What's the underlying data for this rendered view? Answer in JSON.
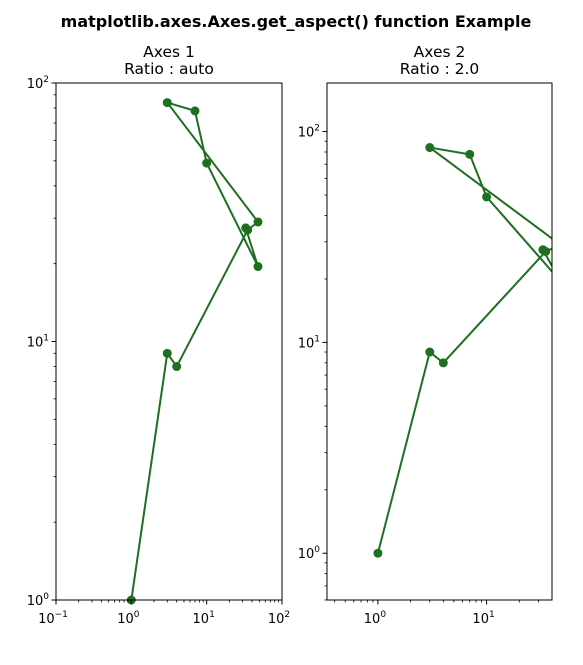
{
  "figure": {
    "suptitle": "matplotlib.axes.Axes.get_aspect() function Example"
  },
  "series_color": "#1f6f22",
  "chart_data": [
    {
      "type": "line",
      "title": "Axes 1",
      "subtitle": "Ratio : auto",
      "xscale": "log",
      "yscale": "log",
      "xlim": [
        0.1,
        100
      ],
      "ylim": [
        1,
        100
      ],
      "x_ticks": [
        {
          "value": 0.1,
          "base": "10",
          "exp": "−1"
        },
        {
          "value": 1,
          "base": "10",
          "exp": "0"
        },
        {
          "value": 10,
          "base": "10",
          "exp": "1"
        },
        {
          "value": 100,
          "base": "10",
          "exp": "2"
        }
      ],
      "y_ticks": [
        {
          "value": 1,
          "base": "10",
          "exp": "0"
        },
        {
          "value": 10,
          "base": "10",
          "exp": "1"
        },
        {
          "value": 100,
          "base": "10",
          "exp": "2"
        }
      ],
      "grid": false,
      "series": [
        {
          "x": [
            1,
            3,
            4,
            35,
            48,
            3,
            7,
            10,
            48,
            33
          ],
          "y": [
            1,
            9,
            8,
            27,
            29,
            84,
            78,
            49,
            19.5,
            27.5
          ]
        }
      ]
    },
    {
      "type": "line",
      "title": "Axes 2",
      "subtitle": "Ratio : 2.0",
      "xscale": "log",
      "yscale": "log",
      "xlim": [
        0.34,
        40
      ],
      "ylim": [
        0.6,
        170
      ],
      "x_ticks": [
        {
          "value": 1,
          "base": "10",
          "exp": "0"
        },
        {
          "value": 10,
          "base": "10",
          "exp": "1"
        }
      ],
      "y_ticks": [
        {
          "value": 1,
          "base": "10",
          "exp": "0"
        },
        {
          "value": 10,
          "base": "10",
          "exp": "1"
        },
        {
          "value": 100,
          "base": "10",
          "exp": "2"
        }
      ],
      "grid": false,
      "series": [
        {
          "x": [
            1,
            3,
            4,
            35,
            48,
            3,
            7,
            10,
            48,
            33
          ],
          "y": [
            1,
            9,
            8,
            27,
            29,
            84,
            78,
            49,
            19.5,
            27.5
          ]
        }
      ]
    }
  ]
}
